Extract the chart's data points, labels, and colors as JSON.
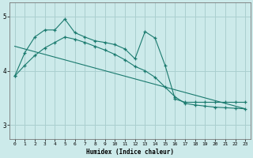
{
  "xlabel": "Humidex (Indice chaleur)",
  "bg_color": "#cceaea",
  "line_color": "#1a7a6e",
  "grid_color": "#aacfcf",
  "xlim": [
    -0.5,
    23.5
  ],
  "ylim": [
    2.75,
    5.25
  ],
  "yticks": [
    3,
    4,
    5
  ],
  "xticks": [
    0,
    1,
    2,
    3,
    4,
    5,
    6,
    7,
    8,
    9,
    10,
    11,
    12,
    13,
    14,
    15,
    16,
    17,
    18,
    19,
    20,
    21,
    22,
    23
  ],
  "line1_x": [
    0,
    1,
    2,
    3,
    4,
    5,
    6,
    7,
    8,
    9,
    10,
    11,
    12,
    13,
    14,
    15,
    16,
    17,
    18,
    19,
    20,
    21,
    22,
    23
  ],
  "line1_y": [
    3.9,
    4.33,
    4.62,
    4.75,
    4.75,
    4.95,
    4.7,
    4.62,
    4.55,
    4.52,
    4.48,
    4.4,
    4.22,
    4.72,
    4.6,
    4.1,
    3.48,
    3.42,
    3.42,
    3.42,
    3.42,
    3.42,
    3.42,
    3.42
  ],
  "line2_x": [
    0,
    1,
    2,
    3,
    4,
    5,
    6,
    7,
    8,
    9,
    10,
    11,
    12,
    13,
    14,
    15,
    16,
    17,
    18,
    19,
    20,
    21,
    22,
    23
  ],
  "line2_y": [
    3.9,
    4.1,
    4.28,
    4.42,
    4.52,
    4.62,
    4.58,
    4.52,
    4.45,
    4.38,
    4.3,
    4.2,
    4.08,
    4.0,
    3.88,
    3.7,
    3.52,
    3.4,
    3.37,
    3.35,
    3.33,
    3.32,
    3.31,
    3.3
  ],
  "line3_x": [
    0,
    23
  ],
  "line3_y": [
    4.45,
    3.3
  ]
}
